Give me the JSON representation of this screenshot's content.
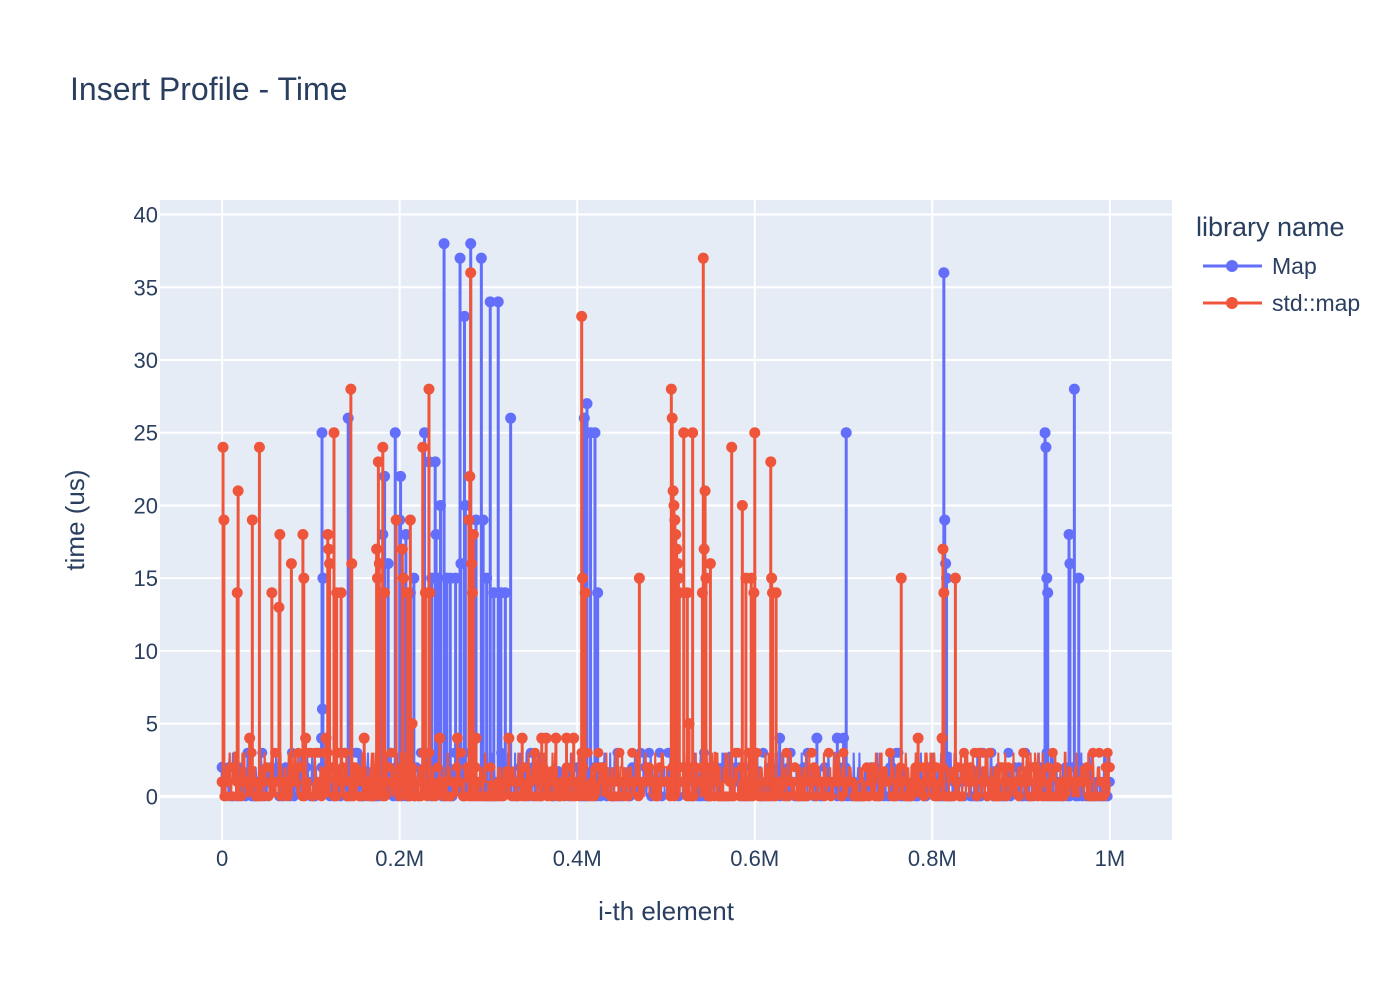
{
  "chart_data": {
    "type": "line",
    "title": "Insert Profile - Time",
    "xlabel": "i-th element",
    "ylabel": "time (us)",
    "xlim": [
      -70000,
      1070000
    ],
    "ylim": [
      -3,
      41
    ],
    "x_ticks": [
      {
        "value": 0,
        "label": "0"
      },
      {
        "value": 200000,
        "label": "0.2M"
      },
      {
        "value": 400000,
        "label": "0.4M"
      },
      {
        "value": 600000,
        "label": "0.6M"
      },
      {
        "value": 800000,
        "label": "0.8M"
      },
      {
        "value": 1000000,
        "label": "1M"
      }
    ],
    "y_ticks": [
      {
        "value": 0,
        "label": "0"
      },
      {
        "value": 5,
        "label": "5"
      },
      {
        "value": 10,
        "label": "10"
      },
      {
        "value": 15,
        "label": "15"
      },
      {
        "value": 20,
        "label": "20"
      },
      {
        "value": 25,
        "label": "25"
      },
      {
        "value": 30,
        "label": "30"
      },
      {
        "value": 35,
        "label": "35"
      },
      {
        "value": 40,
        "label": "40"
      }
    ],
    "grid": true,
    "legend": {
      "title": "library name",
      "placement": "right"
    },
    "series": [
      {
        "name": "Map",
        "color": "#636efa",
        "peaks": [
          [
            0,
            2
          ],
          [
            112000,
            4
          ],
          [
            112500,
            25
          ],
          [
            113000,
            6
          ],
          [
            113500,
            15
          ],
          [
            142000,
            26
          ],
          [
            180000,
            14
          ],
          [
            181000,
            18
          ],
          [
            183000,
            22
          ],
          [
            187000,
            16
          ],
          [
            195000,
            25
          ],
          [
            200000,
            19
          ],
          [
            201000,
            22
          ],
          [
            204000,
            15
          ],
          [
            207000,
            18
          ],
          [
            212000,
            14
          ],
          [
            216000,
            15
          ],
          [
            228000,
            25
          ],
          [
            233000,
            23
          ],
          [
            236000,
            15
          ],
          [
            240000,
            23
          ],
          [
            241000,
            18
          ],
          [
            243000,
            15
          ],
          [
            246000,
            20
          ],
          [
            250000,
            38
          ],
          [
            253000,
            15
          ],
          [
            257000,
            15
          ],
          [
            263000,
            15
          ],
          [
            268000,
            37
          ],
          [
            269000,
            16
          ],
          [
            273000,
            33
          ],
          [
            274000,
            20
          ],
          [
            280000,
            38
          ],
          [
            286000,
            19
          ],
          [
            292000,
            37
          ],
          [
            294000,
            19
          ],
          [
            298000,
            15
          ],
          [
            302000,
            34
          ],
          [
            306000,
            14
          ],
          [
            311000,
            34
          ],
          [
            314000,
            14
          ],
          [
            319000,
            14
          ],
          [
            325000,
            26
          ],
          [
            408000,
            26
          ],
          [
            411000,
            27
          ],
          [
            415000,
            25
          ],
          [
            420000,
            25
          ],
          [
            423000,
            14
          ],
          [
            628000,
            4
          ],
          [
            670000,
            4
          ],
          [
            693000,
            4
          ],
          [
            700000,
            4
          ],
          [
            703000,
            25
          ],
          [
            813000,
            36
          ],
          [
            814000,
            19
          ],
          [
            815000,
            16
          ],
          [
            816000,
            15
          ],
          [
            927000,
            25
          ],
          [
            928000,
            24
          ],
          [
            929000,
            15
          ],
          [
            930000,
            14
          ],
          [
            954000,
            18
          ],
          [
            955000,
            16
          ],
          [
            960000,
            28
          ],
          [
            965000,
            15
          ]
        ]
      },
      {
        "name": "std::map",
        "color": "#ef553b",
        "peaks": [
          [
            0,
            1
          ],
          [
            1000,
            24
          ],
          [
            2000,
            19
          ],
          [
            17000,
            14
          ],
          [
            18000,
            21
          ],
          [
            31000,
            4
          ],
          [
            34000,
            19
          ],
          [
            42000,
            24
          ],
          [
            56000,
            14
          ],
          [
            64000,
            13
          ],
          [
            65000,
            18
          ],
          [
            78000,
            16
          ],
          [
            91000,
            18
          ],
          [
            92000,
            15
          ],
          [
            94000,
            4
          ],
          [
            117000,
            4
          ],
          [
            119000,
            18
          ],
          [
            120000,
            17
          ],
          [
            121000,
            16
          ],
          [
            126000,
            25
          ],
          [
            129000,
            14
          ],
          [
            134000,
            14
          ],
          [
            145000,
            28
          ],
          [
            146000,
            16
          ],
          [
            160000,
            4
          ],
          [
            174000,
            17
          ],
          [
            175000,
            15
          ],
          [
            176000,
            23
          ],
          [
            177000,
            16
          ],
          [
            181000,
            24
          ],
          [
            183000,
            14
          ],
          [
            196000,
            19
          ],
          [
            203000,
            17
          ],
          [
            204000,
            15
          ],
          [
            209000,
            14
          ],
          [
            212000,
            19
          ],
          [
            214000,
            5
          ],
          [
            226000,
            24
          ],
          [
            229000,
            14
          ],
          [
            233000,
            28
          ],
          [
            234000,
            14
          ],
          [
            245000,
            4
          ],
          [
            265000,
            4
          ],
          [
            278000,
            19
          ],
          [
            279000,
            22
          ],
          [
            280000,
            36
          ],
          [
            281000,
            16
          ],
          [
            282000,
            14
          ],
          [
            283000,
            18
          ],
          [
            286000,
            4
          ],
          [
            323000,
            4
          ],
          [
            338000,
            4
          ],
          [
            360000,
            4
          ],
          [
            365000,
            4
          ],
          [
            376000,
            4
          ],
          [
            388000,
            4
          ],
          [
            396000,
            4
          ],
          [
            405000,
            33
          ],
          [
            406000,
            15
          ],
          [
            409000,
            14
          ],
          [
            470000,
            15
          ],
          [
            506000,
            28
          ],
          [
            507000,
            26
          ],
          [
            508000,
            21
          ],
          [
            509000,
            20
          ],
          [
            510000,
            19
          ],
          [
            511000,
            18
          ],
          [
            512000,
            17
          ],
          [
            513000,
            16
          ],
          [
            514000,
            15
          ],
          [
            515000,
            14
          ],
          [
            520000,
            25
          ],
          [
            524000,
            14
          ],
          [
            526000,
            5
          ],
          [
            530000,
            25
          ],
          [
            541000,
            14
          ],
          [
            542000,
            37
          ],
          [
            543000,
            17
          ],
          [
            544000,
            21
          ],
          [
            545000,
            15
          ],
          [
            550000,
            16
          ],
          [
            574000,
            24
          ],
          [
            586000,
            20
          ],
          [
            590000,
            15
          ],
          [
            596000,
            15
          ],
          [
            599000,
            14
          ],
          [
            600000,
            25
          ],
          [
            618000,
            23
          ],
          [
            619000,
            15
          ],
          [
            620000,
            14
          ],
          [
            624000,
            14
          ],
          [
            765000,
            15
          ],
          [
            784000,
            4
          ],
          [
            811000,
            4
          ],
          [
            812000,
            17
          ],
          [
            813000,
            14
          ],
          [
            826000,
            15
          ]
        ]
      }
    ]
  }
}
